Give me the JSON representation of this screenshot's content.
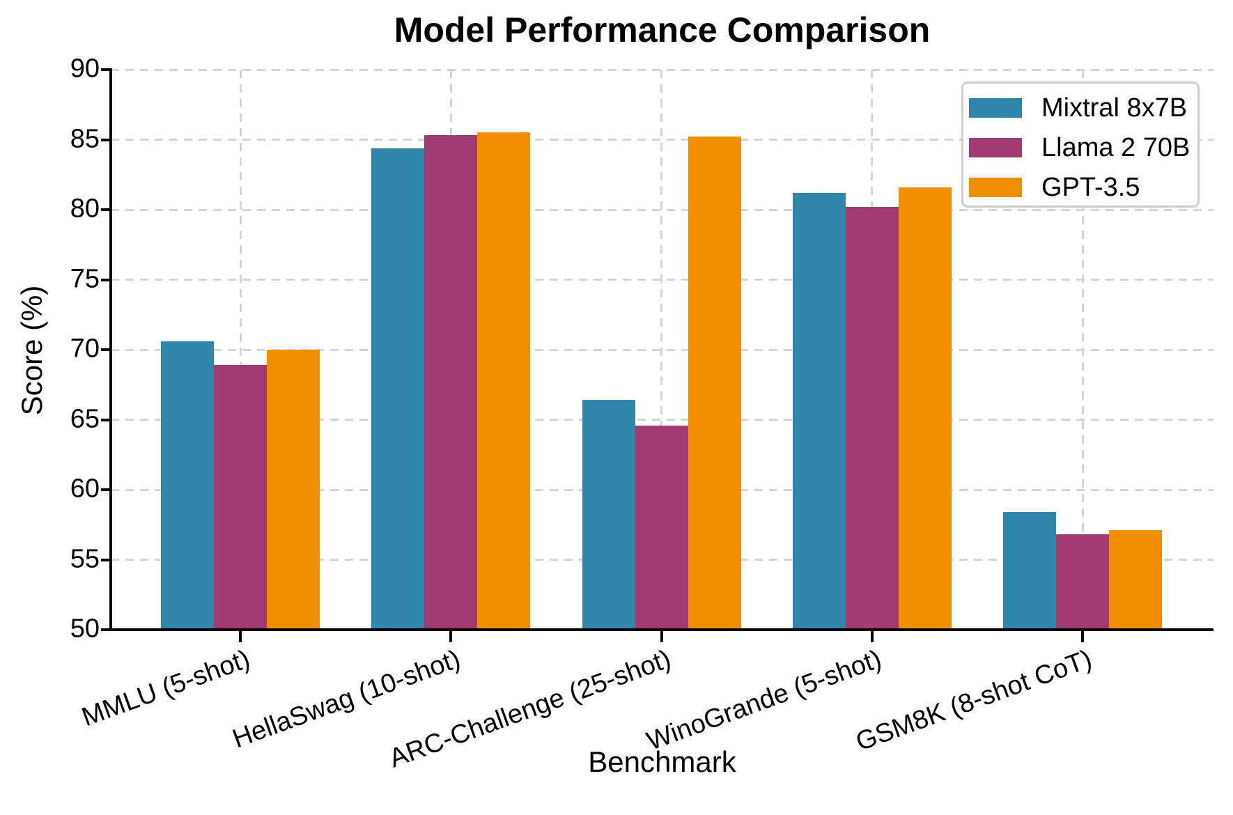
{
  "chart_data": {
    "type": "bar",
    "title": "Model Performance Comparison",
    "xlabel": "Benchmark",
    "ylabel": "Score (%)",
    "ylim": [
      50,
      90
    ],
    "yticks": [
      50,
      55,
      60,
      65,
      70,
      75,
      80,
      85,
      90
    ],
    "categories": [
      "MMLU (5-shot)",
      "HellaSwag (10-shot)",
      "ARC-Challenge (25-shot)",
      "WinoGrande (5-shot)",
      "GSM8K (8-shot CoT)"
    ],
    "series": [
      {
        "name": "Mixtral 8x7B",
        "color": "#2E86AB",
        "values": [
          70.6,
          84.4,
          66.4,
          81.2,
          58.4
        ]
      },
      {
        "name": "Llama 2 70B",
        "color": "#A23B72",
        "values": [
          68.9,
          85.3,
          64.6,
          80.2,
          56.8
        ]
      },
      {
        "name": "GPT-3.5",
        "color": "#F18F01",
        "values": [
          70.0,
          85.5,
          85.2,
          81.6,
          57.1
        ]
      }
    ],
    "legend_position": "upper right",
    "grid": true,
    "grid_color": "#d4d4d4",
    "axis_color": "#000000",
    "background_color": "#ffffff"
  }
}
